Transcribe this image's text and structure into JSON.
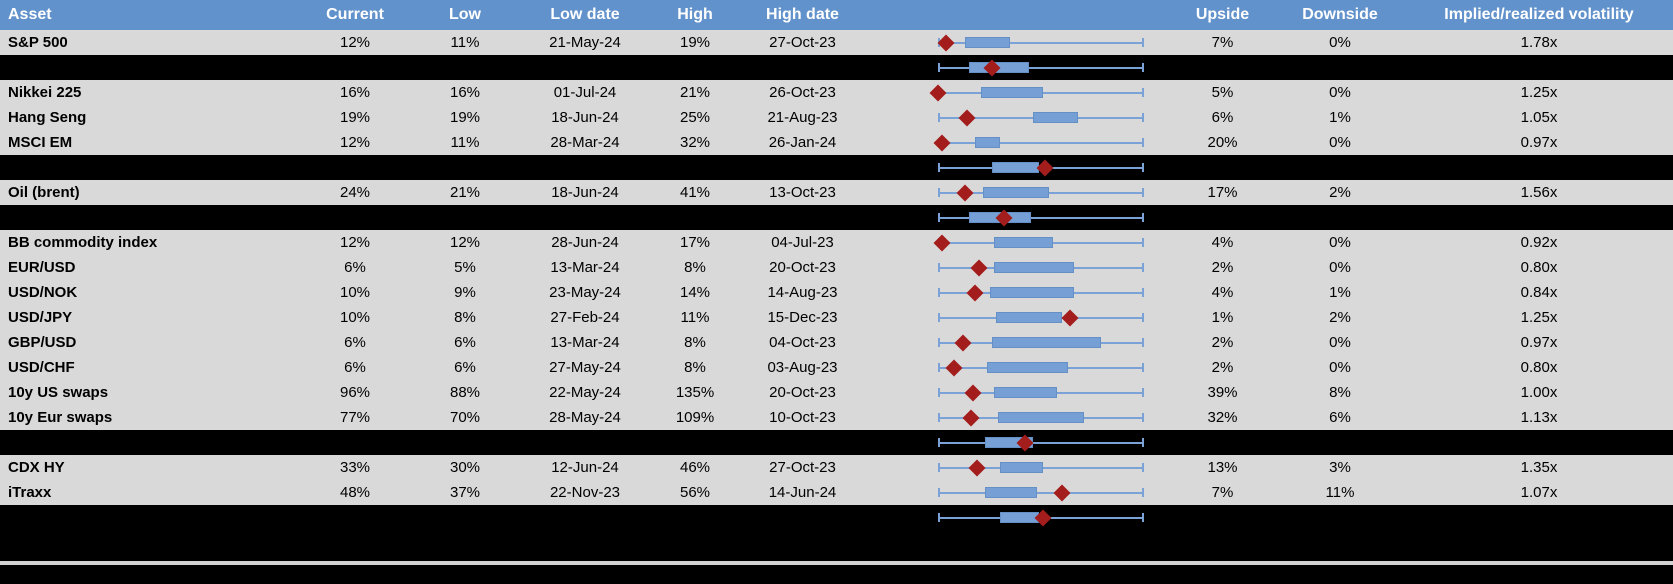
{
  "colors": {
    "header_bg": "#6292CB",
    "header_text": "#ffffff",
    "row_bg": "#D9D9D9",
    "separator_bg": "#000000",
    "box_fill": "#76A0D5",
    "whisker": "#7BA2D6",
    "marker_diamond": "#A41D1D"
  },
  "chart_data": {
    "type": "table",
    "title": "Asset volatility ranges with box-whisker plots",
    "columns": [
      "Asset",
      "Current",
      "Low",
      "Low date",
      "High",
      "High date",
      "",
      "Upside",
      "Downside",
      "Implied/realized volatility"
    ],
    "boxplot_note_range": [
      0,
      1
    ],
    "rows": [
      {
        "type": "data",
        "asset": "S&P 500",
        "current": "12%",
        "low": "11%",
        "low_date": "21-May-24",
        "high": "19%",
        "high_date": "27-Oct-23",
        "upside": "7%",
        "downside": "0%",
        "vol": "1.78x",
        "box": [
          0.13,
          0.35
        ],
        "diamond": 0.04
      },
      {
        "type": "separator",
        "box": [
          0.15,
          0.44
        ],
        "diamond": 0.26
      },
      {
        "type": "data",
        "asset": "Nikkei 225",
        "current": "16%",
        "low": "16%",
        "low_date": "01-Jul-24",
        "high": "21%",
        "high_date": "26-Oct-23",
        "upside": "5%",
        "downside": "0%",
        "vol": "1.25x",
        "box": [
          0.21,
          0.51
        ],
        "diamond": 0.0
      },
      {
        "type": "data",
        "asset": "Hang Seng",
        "current": "19%",
        "low": "19%",
        "low_date": "18-Jun-24",
        "high": "25%",
        "high_date": "21-Aug-23",
        "upside": "6%",
        "downside": "1%",
        "vol": "1.05x",
        "box": [
          0.46,
          0.68
        ],
        "diamond": 0.14
      },
      {
        "type": "data",
        "asset": "MSCI EM",
        "current": "12%",
        "low": "11%",
        "low_date": "28-Mar-24",
        "high": "32%",
        "high_date": "26-Jan-24",
        "upside": "20%",
        "downside": "0%",
        "vol": "0.97x",
        "box": [
          0.18,
          0.3
        ],
        "diamond": 0.02
      },
      {
        "type": "separator",
        "box": [
          0.26,
          0.49
        ],
        "diamond": 0.52
      },
      {
        "type": "data",
        "asset": "Oil (brent)",
        "current": "24%",
        "low": "21%",
        "low_date": "18-Jun-24",
        "high": "41%",
        "high_date": "13-Oct-23",
        "upside": "17%",
        "downside": "2%",
        "vol": "1.56x",
        "box": [
          0.22,
          0.54
        ],
        "diamond": 0.13
      },
      {
        "type": "separator",
        "box": [
          0.15,
          0.45
        ],
        "diamond": 0.32
      },
      {
        "type": "data",
        "asset": "BB commodity index",
        "current": "12%",
        "low": "12%",
        "low_date": "28-Jun-24",
        "high": "17%",
        "high_date": "04-Jul-23",
        "upside": "4%",
        "downside": "0%",
        "vol": "0.92x",
        "box": [
          0.27,
          0.56
        ],
        "diamond": 0.02
      },
      {
        "type": "data",
        "asset": "EUR/USD",
        "current": "6%",
        "low": "5%",
        "low_date": "13-Mar-24",
        "high": "8%",
        "high_date": "20-Oct-23",
        "upside": "2%",
        "downside": "0%",
        "vol": "0.80x",
        "box": [
          0.27,
          0.66
        ],
        "diamond": 0.2
      },
      {
        "type": "data",
        "asset": "USD/NOK",
        "current": "10%",
        "low": "9%",
        "low_date": "23-May-24",
        "high": "14%",
        "high_date": "14-Aug-23",
        "upside": "4%",
        "downside": "1%",
        "vol": "0.84x",
        "box": [
          0.25,
          0.66
        ],
        "diamond": 0.18
      },
      {
        "type": "data",
        "asset": "USD/JPY",
        "current": "10%",
        "low": "8%",
        "low_date": "27-Feb-24",
        "high": "11%",
        "high_date": "15-Dec-23",
        "upside": "1%",
        "downside": "2%",
        "vol": "1.25x",
        "box": [
          0.28,
          0.6
        ],
        "diamond": 0.64
      },
      {
        "type": "data",
        "asset": "GBP/USD",
        "current": "6%",
        "low": "6%",
        "low_date": "13-Mar-24",
        "high": "8%",
        "high_date": "04-Oct-23",
        "upside": "2%",
        "downside": "0%",
        "vol": "0.97x",
        "box": [
          0.26,
          0.79
        ],
        "diamond": 0.12
      },
      {
        "type": "data",
        "asset": "USD/CHF",
        "current": "6%",
        "low": "6%",
        "low_date": "27-May-24",
        "high": "8%",
        "high_date": "03-Aug-23",
        "upside": "2%",
        "downside": "0%",
        "vol": "0.80x",
        "box": [
          0.24,
          0.63
        ],
        "diamond": 0.08
      },
      {
        "type": "data",
        "asset": "10y US swaps",
        "current": "96%",
        "low": "88%",
        "low_date": "22-May-24",
        "high": "135%",
        "high_date": "20-Oct-23",
        "upside": "39%",
        "downside": "8%",
        "vol": "1.00x",
        "box": [
          0.27,
          0.58
        ],
        "diamond": 0.17
      },
      {
        "type": "data",
        "asset": "10y Eur swaps",
        "current": "77%",
        "low": "70%",
        "low_date": "28-May-24",
        "high": "109%",
        "high_date": "10-Oct-23",
        "upside": "32%",
        "downside": "6%",
        "vol": "1.13x",
        "box": [
          0.29,
          0.71
        ],
        "diamond": 0.16
      },
      {
        "type": "separator",
        "box": [
          0.23,
          0.46
        ],
        "diamond": 0.42
      },
      {
        "type": "data",
        "asset": "CDX HY",
        "current": "33%",
        "low": "30%",
        "low_date": "12-Jun-24",
        "high": "46%",
        "high_date": "27-Oct-23",
        "upside": "13%",
        "downside": "3%",
        "vol": "1.35x",
        "box": [
          0.3,
          0.51
        ],
        "diamond": 0.19
      },
      {
        "type": "data",
        "asset": "iTraxx",
        "current": "48%",
        "low": "37%",
        "low_date": "22-Nov-23",
        "high": "56%",
        "high_date": "14-Jun-24",
        "upside": "7%",
        "downside": "11%",
        "vol": "1.07x",
        "box": [
          0.23,
          0.48
        ],
        "diamond": 0.6
      },
      {
        "type": "separator",
        "box": [
          0.3,
          0.49
        ],
        "diamond": 0.51
      },
      {
        "type": "separator-empty"
      }
    ]
  }
}
